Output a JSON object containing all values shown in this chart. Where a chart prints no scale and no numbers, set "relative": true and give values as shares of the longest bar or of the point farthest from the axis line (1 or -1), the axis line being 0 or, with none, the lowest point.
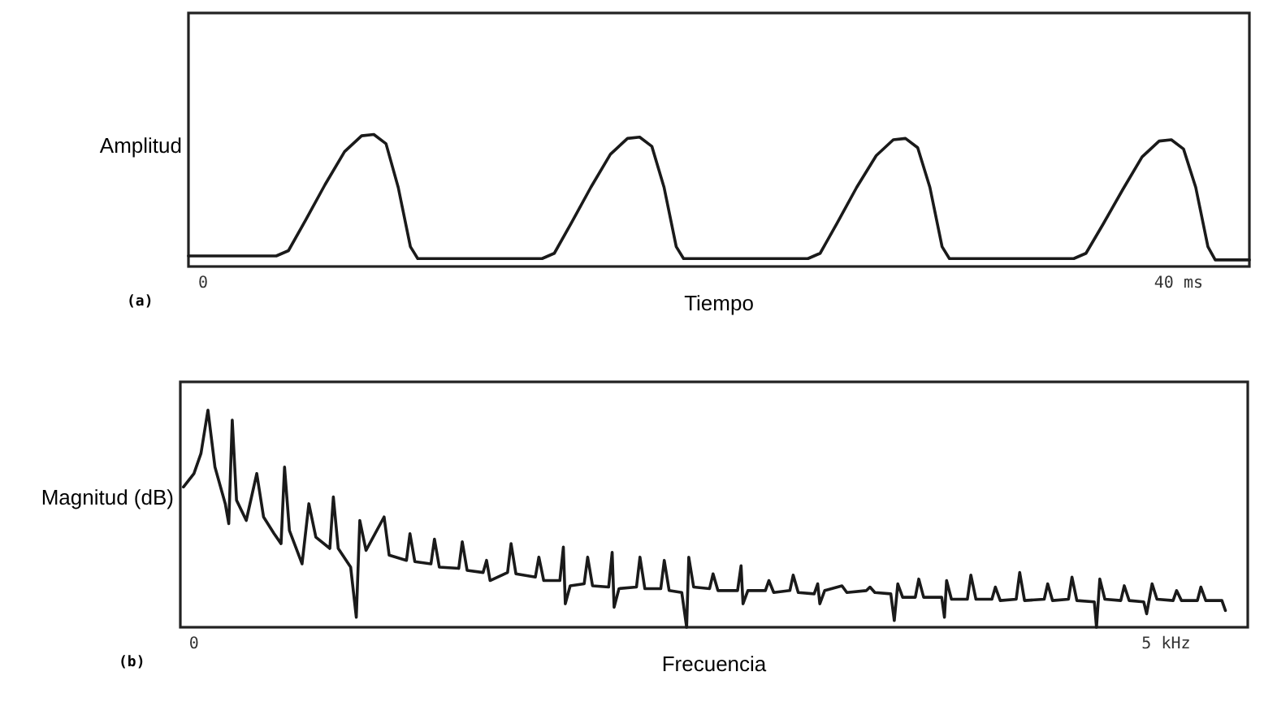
{
  "chart_data": [
    {
      "type": "line",
      "relative": true,
      "ylabel": "Amplitud",
      "xlabel": "Tiempo",
      "annotations": [
        "(a)"
      ],
      "xlim": [
        -0.6,
        42.9
      ],
      "xticks": [
        0,
        {
          "value": 40,
          "label": "40 ms"
        }
      ],
      "tick_labels": "x",
      "marker": "none",
      "line_style": "solid",
      "series": [
        {
          "color": "#1a1a1a",
          "x": [
            -0.6,
            3.0,
            3.5,
            4.2,
            5.0,
            5.8,
            6.5,
            7.0,
            7.5,
            8.0,
            8.5,
            8.8,
            13.9,
            14.4,
            15.1,
            15.9,
            16.7,
            17.4,
            17.9,
            18.4,
            18.9,
            19.4,
            19.7,
            24.8,
            25.3,
            26.0,
            26.8,
            27.6,
            28.3,
            28.8,
            29.3,
            29.8,
            30.3,
            30.6,
            35.7,
            36.2,
            36.9,
            37.7,
            38.5,
            39.2,
            39.7,
            40.2,
            40.7,
            41.2,
            41.5,
            42.9
          ],
          "values": [
            0.08,
            0.08,
            0.12,
            0.35,
            0.62,
            0.87,
            0.99,
            1.0,
            0.93,
            0.6,
            0.15,
            0.06,
            0.06,
            0.1,
            0.33,
            0.6,
            0.85,
            0.97,
            0.98,
            0.91,
            0.6,
            0.15,
            0.06,
            0.06,
            0.1,
            0.33,
            0.6,
            0.84,
            0.96,
            0.97,
            0.9,
            0.6,
            0.15,
            0.06,
            0.06,
            0.1,
            0.32,
            0.58,
            0.83,
            0.95,
            0.96,
            0.89,
            0.6,
            0.15,
            0.05,
            0.05
          ]
        }
      ]
    },
    {
      "type": "line",
      "relative": true,
      "ylabel": "Magnitud (dB)",
      "xlabel": "Frecuencia",
      "annotations": [
        "(b)"
      ],
      "xlim": [
        -0.07,
        5.42
      ],
      "xticks": [
        0,
        {
          "value": 5,
          "label": "5 kHz"
        }
      ],
      "tick_labels": "x",
      "marker": "none",
      "line_style": "solid",
      "series": [
        {
          "color": "#1a1a1a",
          "x": [
            -0.054,
            0,
            0.036,
            0.072,
            0.108,
            0.161,
            0.179,
            0.197,
            0.219,
            0.269,
            0.323,
            0.358,
            0.412,
            0.448,
            0.466,
            0.491,
            0.556,
            0.591,
            0.627,
            0.699,
            0.717,
            0.742,
            0.806,
            0.835,
            0.853,
            0.885,
            0.978,
            1.004,
            1.093,
            1.111,
            1.136,
            1.219,
            1.237,
            1.262,
            1.362,
            1.38,
            1.405,
            1.487,
            1.505,
            1.523,
            1.613,
            1.631,
            1.656,
            1.756,
            1.774,
            1.799,
            1.882,
            1.9,
            1.91,
            1.935,
            2.007,
            2.025,
            2.05,
            2.133,
            2.151,
            2.161,
            2.186,
            2.276,
            2.294,
            2.319,
            2.401,
            2.419,
            2.444,
            2.509,
            2.534,
            2.545,
            2.57,
            2.652,
            2.67,
            2.695,
            2.796,
            2.814,
            2.824,
            2.849,
            2.939,
            2.957,
            2.982,
            3.065,
            3.082,
            3.108,
            3.19,
            3.208,
            3.219,
            3.244,
            3.333,
            3.358,
            3.459,
            3.477,
            3.502,
            3.584,
            3.602,
            3.62,
            3.645,
            3.71,
            3.728,
            3.753,
            3.846,
            3.86,
            3.871,
            3.896,
            3.978,
            3.996,
            4.022,
            4.104,
            4.122,
            4.147,
            4.229,
            4.247,
            4.272,
            4.373,
            4.391,
            4.416,
            4.498,
            4.516,
            4.541,
            4.631,
            4.642,
            4.659,
            4.685,
            4.767,
            4.785,
            4.81,
            4.885,
            4.9,
            4.928,
            4.953,
            5.036,
            5.054,
            5.079,
            5.161,
            5.179,
            5.204,
            5.287,
            5.305
          ],
          "values": [
            0.646,
            0.708,
            0.8,
            1.0,
            0.738,
            0.569,
            0.477,
            0.954,
            0.585,
            0.492,
            0.708,
            0.508,
            0.431,
            0.385,
            0.738,
            0.446,
            0.292,
            0.569,
            0.415,
            0.363,
            0.6,
            0.363,
            0.277,
            0.046,
            0.492,
            0.354,
            0.508,
            0.332,
            0.308,
            0.431,
            0.302,
            0.292,
            0.406,
            0.277,
            0.271,
            0.394,
            0.262,
            0.252,
            0.308,
            0.215,
            0.252,
            0.385,
            0.246,
            0.231,
            0.323,
            0.215,
            0.215,
            0.369,
            0.108,
            0.191,
            0.2,
            0.323,
            0.191,
            0.185,
            0.345,
            0.092,
            0.178,
            0.185,
            0.323,
            0.178,
            0.178,
            0.308,
            0.169,
            0.16,
            0.0,
            0.323,
            0.185,
            0.178,
            0.246,
            0.169,
            0.169,
            0.283,
            0.108,
            0.169,
            0.169,
            0.215,
            0.16,
            0.169,
            0.24,
            0.16,
            0.154,
            0.2,
            0.108,
            0.169,
            0.191,
            0.16,
            0.169,
            0.185,
            0.16,
            0.154,
            0.031,
            0.2,
            0.138,
            0.138,
            0.222,
            0.138,
            0.138,
            0.046,
            0.215,
            0.129,
            0.129,
            0.24,
            0.129,
            0.129,
            0.185,
            0.123,
            0.129,
            0.252,
            0.123,
            0.129,
            0.2,
            0.123,
            0.129,
            0.231,
            0.123,
            0.117,
            0.0,
            0.222,
            0.129,
            0.123,
            0.191,
            0.123,
            0.117,
            0.062,
            0.2,
            0.129,
            0.123,
            0.169,
            0.123,
            0.123,
            0.185,
            0.123,
            0.123,
            0.077
          ]
        }
      ]
    }
  ]
}
